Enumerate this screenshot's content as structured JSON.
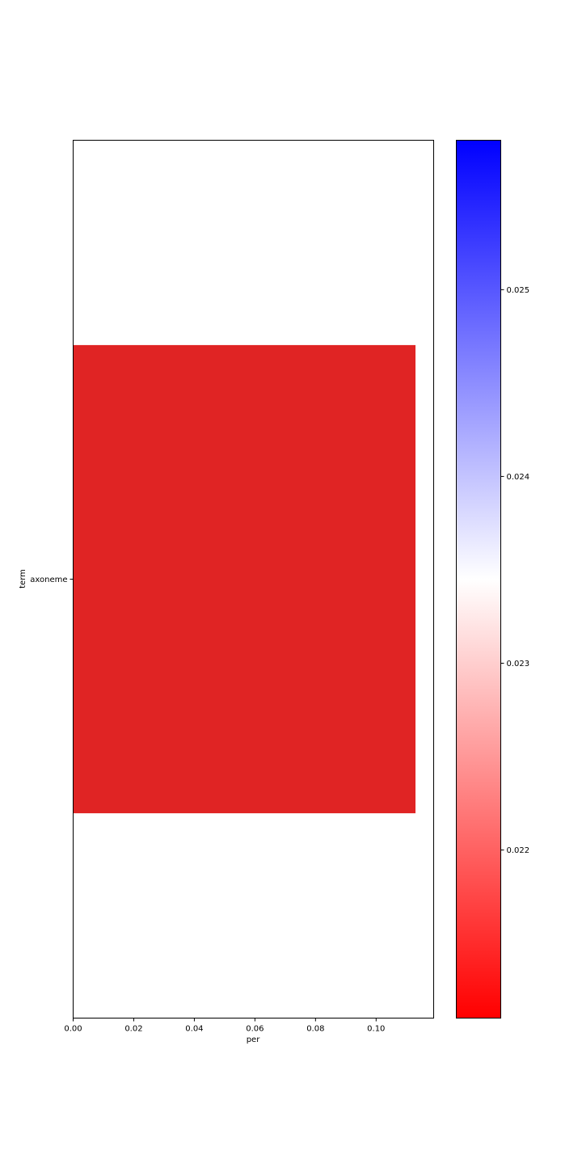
{
  "chart_data": {
    "type": "bar",
    "orientation": "horizontal",
    "categories": [
      "axoneme"
    ],
    "values": [
      0.113
    ],
    "color_values": [
      0.0211
    ],
    "xlabel": "per",
    "ylabel": "term",
    "xlim": [
      0,
      0.119
    ],
    "xticks": [
      "0.00",
      "0.02",
      "0.04",
      "0.06",
      "0.08",
      "0.10"
    ],
    "grid": false,
    "bar_color": "#e02424",
    "colorbar": {
      "colormap": "bwr_r",
      "range": [
        0.0211,
        0.0258
      ],
      "ticks": [
        0.022,
        0.023,
        0.024,
        0.025
      ],
      "tick_labels": [
        "0.022",
        "0.023",
        "0.024",
        "0.025"
      ],
      "color_low": "#ff0000",
      "color_mid": "#ffffff",
      "color_high": "#0000ff"
    }
  }
}
